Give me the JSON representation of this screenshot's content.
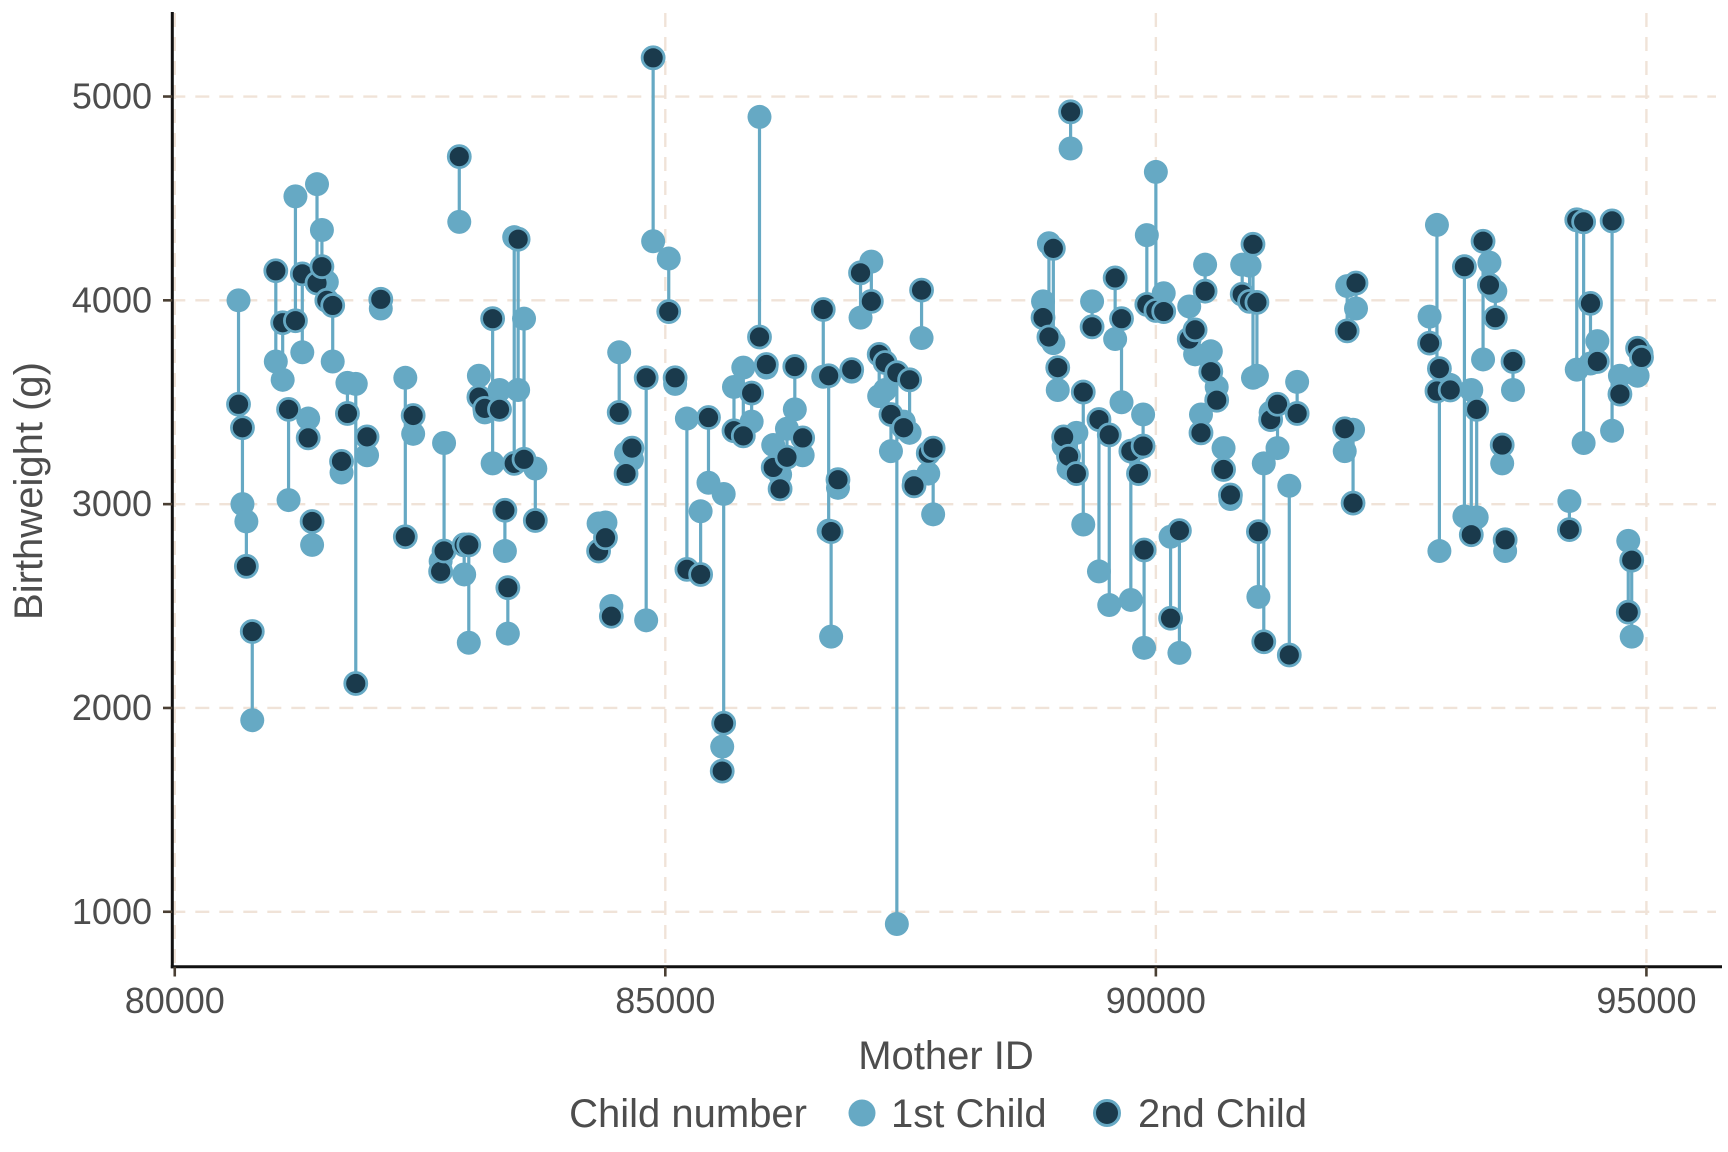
{
  "chart_data": {
    "type": "scatter",
    "title": "",
    "xlabel": "Mother ID",
    "ylabel": "Birthweight (g)",
    "x_ticks": [
      80000,
      85000,
      90000,
      95000
    ],
    "y_ticks": [
      1000,
      2000,
      3000,
      4000,
      5000
    ],
    "xlim": [
      79975,
      95750
    ],
    "ylim": [
      730,
      5400
    ],
    "grid": "dashed-both-axes",
    "legend": {
      "title": "Child number",
      "position": "bottom-center",
      "items": [
        {
          "label": "1st Child",
          "color": "#66A9C4"
        },
        {
          "label": "2nd Child",
          "color": "#1A3A4C"
        }
      ]
    },
    "pairs_note": "each pair = [mother_id, birthweight_1st_child_g, birthweight_2nd_child_g]",
    "pairs": [
      [
        80650,
        4000,
        3490
      ],
      [
        80690,
        3000,
        3375
      ],
      [
        80730,
        2915,
        2695
      ],
      [
        80790,
        1940,
        2375
      ],
      [
        81030,
        3700,
        4145
      ],
      [
        81100,
        3610,
        3890
      ],
      [
        81160,
        3020,
        3465
      ],
      [
        81230,
        4510,
        3900
      ],
      [
        81300,
        3745,
        4130
      ],
      [
        81360,
        3420,
        3325
      ],
      [
        81400,
        2800,
        2915
      ],
      [
        81450,
        4570,
        4085
      ],
      [
        81500,
        4345,
        4165
      ],
      [
        81550,
        4090,
        4000
      ],
      [
        81610,
        3700,
        3975
      ],
      [
        81700,
        3155,
        3210
      ],
      [
        81760,
        3595,
        3445
      ],
      [
        81845,
        3590,
        2120
      ],
      [
        81960,
        3240,
        3330
      ],
      [
        82100,
        3960,
        4005
      ],
      [
        82350,
        3620,
        2840
      ],
      [
        82430,
        3345,
        3435
      ],
      [
        82710,
        2720,
        2670
      ],
      [
        82745,
        3300,
        2770
      ],
      [
        82900,
        4385,
        4705
      ],
      [
        82950,
        2655,
        2800
      ],
      [
        82997,
        2320,
        2800
      ],
      [
        83100,
        3630,
        3525
      ],
      [
        83160,
        3450,
        3470
      ],
      [
        83240,
        3200,
        3910
      ],
      [
        83310,
        3560,
        3465
      ],
      [
        83365,
        2770,
        2970
      ],
      [
        83395,
        2365,
        2590
      ],
      [
        83460,
        4310,
        3200
      ],
      [
        83500,
        3560,
        4300
      ],
      [
        83560,
        3910,
        3220
      ],
      [
        83675,
        3175,
        2920
      ],
      [
        84320,
        2905,
        2770
      ],
      [
        84390,
        2910,
        2835
      ],
      [
        84450,
        2500,
        2450
      ],
      [
        84530,
        3745,
        3450
      ],
      [
        84600,
        3250,
        3150
      ],
      [
        84660,
        3220,
        3275
      ],
      [
        84805,
        2430,
        3620
      ],
      [
        84876,
        4290,
        5190
      ],
      [
        85035,
        4205,
        3945
      ],
      [
        85100,
        3590,
        3620
      ],
      [
        85220,
        3420,
        2680
      ],
      [
        85360,
        2965,
        2655
      ],
      [
        85440,
        3105,
        3425
      ],
      [
        85580,
        1810,
        1690
      ],
      [
        85595,
        3050,
        1925
      ],
      [
        85700,
        3575,
        3360
      ],
      [
        85795,
        3670,
        3335
      ],
      [
        85880,
        3405,
        3545
      ],
      [
        85960,
        4900,
        3820
      ],
      [
        86030,
        3670,
        3685
      ],
      [
        86100,
        3290,
        3180
      ],
      [
        86170,
        3145,
        3075
      ],
      [
        86240,
        3370,
        3230
      ],
      [
        86320,
        3465,
        3675
      ],
      [
        86400,
        3240,
        3325
      ],
      [
        86610,
        3625,
        3955
      ],
      [
        86665,
        2870,
        3630
      ],
      [
        86690,
        2350,
        2865
      ],
      [
        86760,
        3080,
        3120
      ],
      [
        86900,
        3650,
        3660
      ],
      [
        86990,
        3915,
        4135
      ],
      [
        87100,
        4190,
        3995
      ],
      [
        87180,
        3530,
        3735
      ],
      [
        87240,
        3560,
        3695
      ],
      [
        87300,
        3260,
        3440
      ],
      [
        87360,
        940,
        3645
      ],
      [
        87430,
        3405,
        3375
      ],
      [
        87490,
        3350,
        3610
      ],
      [
        87535,
        3110,
        3090
      ],
      [
        87612,
        3815,
        4050
      ],
      [
        87680,
        3150,
        3250
      ],
      [
        87730,
        2950,
        3275
      ],
      [
        88850,
        3995,
        3915
      ],
      [
        88910,
        4280,
        3820
      ],
      [
        88955,
        3790,
        4255
      ],
      [
        89000,
        3560,
        3670
      ],
      [
        89060,
        3285,
        3330
      ],
      [
        89110,
        3175,
        3235
      ],
      [
        89131,
        4745,
        4925
      ],
      [
        89190,
        3350,
        3150
      ],
      [
        89260,
        2900,
        3550
      ],
      [
        89350,
        3995,
        3870
      ],
      [
        89420,
        2670,
        3415
      ],
      [
        89525,
        2505,
        3340
      ],
      [
        89585,
        3810,
        4110
      ],
      [
        89650,
        3500,
        3910
      ],
      [
        89745,
        2530,
        3260
      ],
      [
        89823,
        3275,
        3150
      ],
      [
        89870,
        3440,
        3285
      ],
      [
        89880,
        2295,
        2775
      ],
      [
        89908,
        4320,
        3980
      ],
      [
        90000,
        4630,
        3950
      ],
      [
        90080,
        4035,
        3945
      ],
      [
        90150,
        2840,
        2440
      ],
      [
        90240,
        2270,
        2870
      ],
      [
        90340,
        3970,
        3810
      ],
      [
        90400,
        3735,
        3855
      ],
      [
        90460,
        3440,
        3350
      ],
      [
        90502,
        4175,
        4045
      ],
      [
        90560,
        3750,
        3650
      ],
      [
        90620,
        3575,
        3510
      ],
      [
        90690,
        3275,
        3170
      ],
      [
        90760,
        3025,
        3045
      ],
      [
        90880,
        4175,
        4030
      ],
      [
        90955,
        4170,
        3995
      ],
      [
        90990,
        3620,
        4275
      ],
      [
        91030,
        3630,
        3990
      ],
      [
        91045,
        2545,
        2865
      ],
      [
        91100,
        3200,
        2325
      ],
      [
        91170,
        3450,
        3415
      ],
      [
        91240,
        3275,
        3490
      ],
      [
        91360,
        3090,
        2260
      ],
      [
        91440,
        3600,
        3445
      ],
      [
        91925,
        3260,
        3370
      ],
      [
        91950,
        4070,
        3850
      ],
      [
        92010,
        3365,
        3005
      ],
      [
        92040,
        3960,
        4085
      ],
      [
        92790,
        3920,
        3790
      ],
      [
        92865,
        4370,
        3555
      ],
      [
        92890,
        2770,
        3665
      ],
      [
        93000,
        3585,
        3560
      ],
      [
        93145,
        2940,
        4165
      ],
      [
        93215,
        3560,
        2850
      ],
      [
        93270,
        2935,
        3465
      ],
      [
        93335,
        3710,
        4290
      ],
      [
        93400,
        4185,
        4075
      ],
      [
        93460,
        4045,
        3915
      ],
      [
        93530,
        3200,
        3290
      ],
      [
        93560,
        2770,
        2825
      ],
      [
        93640,
        3560,
        3700
      ],
      [
        94215,
        3015,
        2875
      ],
      [
        94290,
        3660,
        4395
      ],
      [
        94360,
        3300,
        4385
      ],
      [
        94430,
        3690,
        3985
      ],
      [
        94500,
        3800,
        3700
      ],
      [
        94650,
        3360,
        4390
      ],
      [
        94730,
        3630,
        3540
      ],
      [
        94815,
        2820,
        2470
      ],
      [
        94850,
        2350,
        2725
      ],
      [
        94910,
        3630,
        3765
      ],
      [
        94950,
        3740,
        3720
      ]
    ]
  },
  "colors": {
    "first_child": "#66A9C4",
    "second_child_fill": "#1A3A4C",
    "second_child_stroke": "#66A9C4",
    "connector": "#66A9C4",
    "grid": "#F0E3D8",
    "axis": "#111111",
    "tick": "#4A3F33",
    "text": "#4D4D4D",
    "background": "#FFFFFF"
  }
}
